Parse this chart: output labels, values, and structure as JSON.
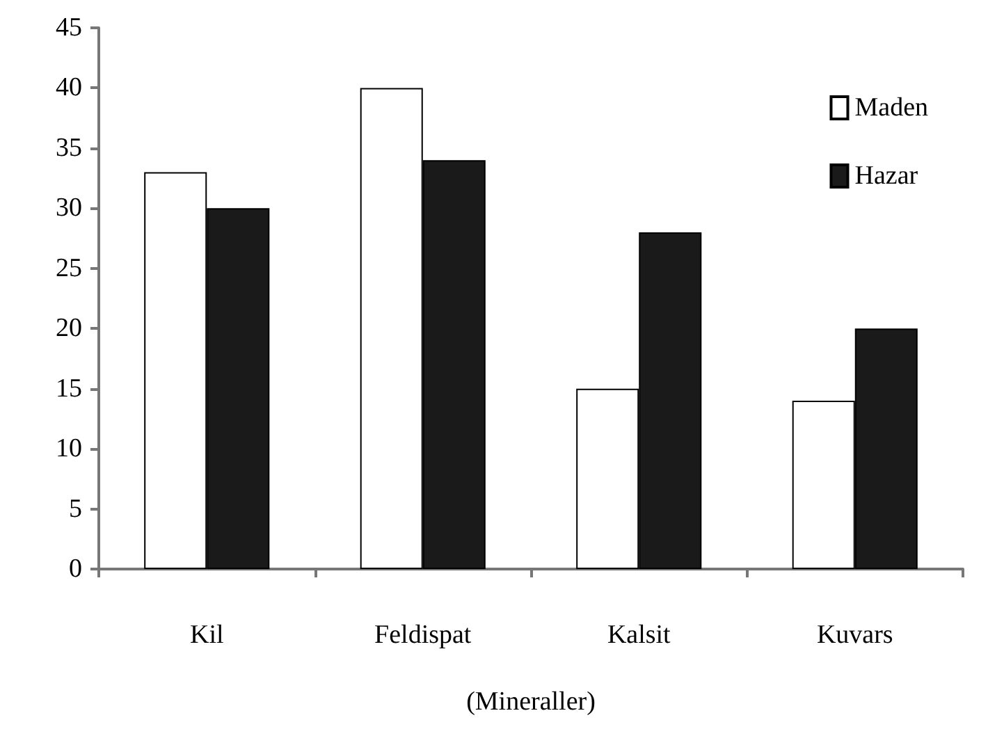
{
  "chart_data": {
    "type": "bar",
    "xlabel": "(Mineraller)",
    "categories": [
      "Kil",
      "Feldispat",
      "Kalsit",
      "Kuvars"
    ],
    "series": [
      {
        "name": "Maden",
        "color": "#ffffff",
        "values": [
          33,
          40,
          15,
          14
        ]
      },
      {
        "name": "Hazar",
        "color": "#1a1a1a",
        "values": [
          30,
          34,
          28,
          20
        ]
      }
    ],
    "ylim": [
      0,
      45
    ],
    "yticks": [
      0,
      5,
      10,
      15,
      20,
      25,
      30,
      35,
      40,
      45
    ],
    "grid": false,
    "legend": "top right"
  }
}
